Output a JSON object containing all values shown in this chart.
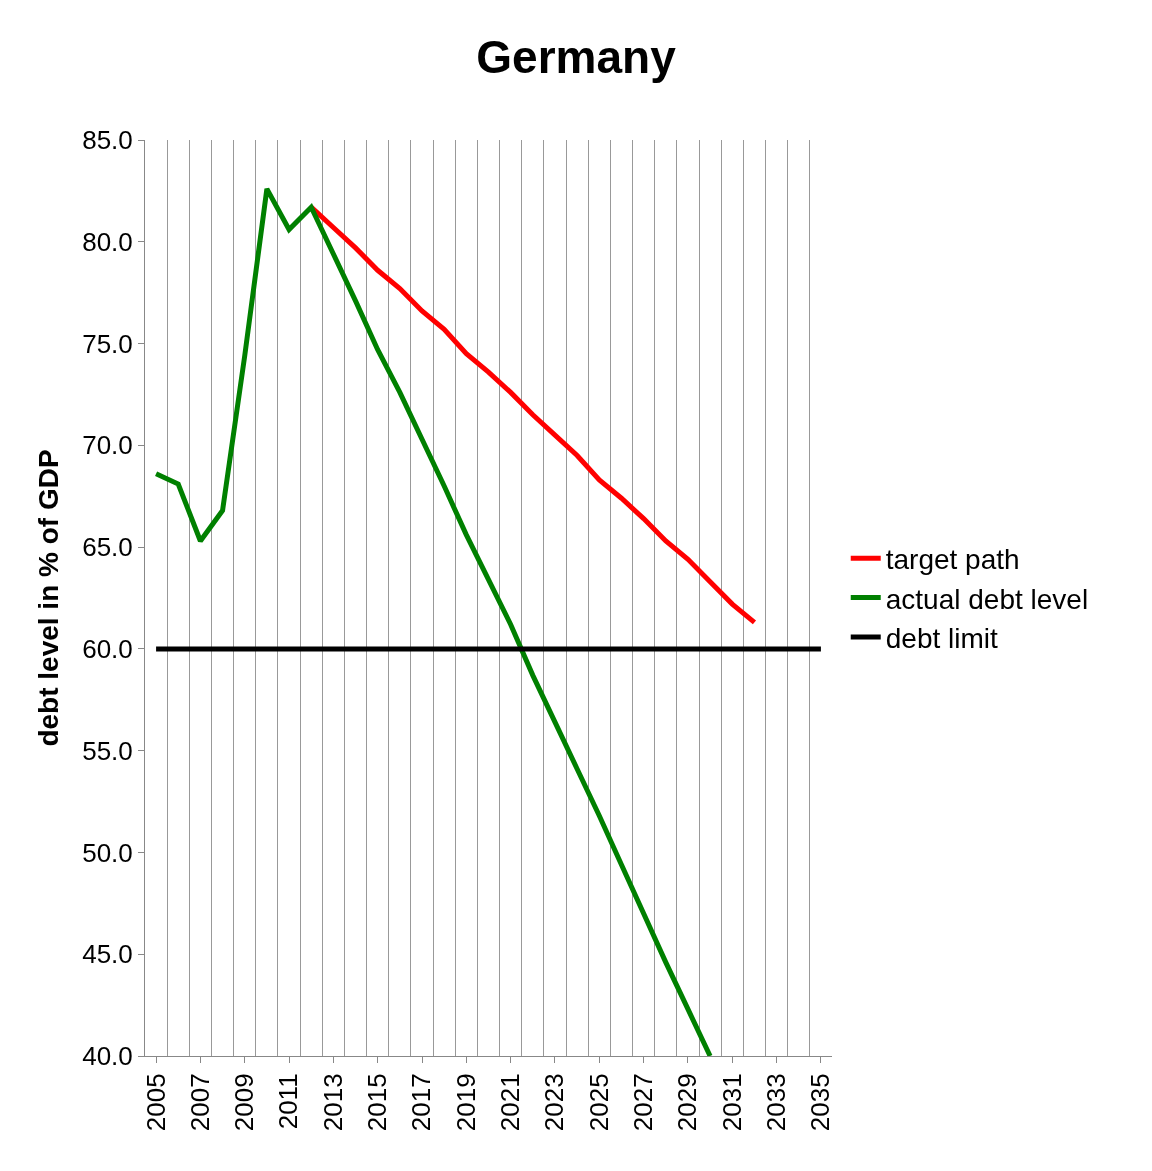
{
  "chart_data": {
    "type": "line",
    "title": "Germany",
    "ylabel": "debt level in % of GDP",
    "series": [
      {
        "name": "target path",
        "color": "#ff0000",
        "x": [
          2012,
          2013,
          2014,
          2015,
          2016,
          2017,
          2018,
          2019,
          2020,
          2021,
          2022,
          2023,
          2024,
          2025,
          2026,
          2027,
          2028,
          2029,
          2030,
          2031,
          2032
        ],
        "values": [
          81.7,
          80.7,
          79.7,
          78.6,
          77.7,
          76.6,
          75.7,
          74.5,
          73.6,
          72.6,
          71.5,
          70.5,
          69.5,
          68.3,
          67.4,
          66.4,
          65.3,
          64.4,
          63.3,
          62.2,
          61.3
        ]
      },
      {
        "name": "actual debt level",
        "color": "#008000",
        "x": [
          2005,
          2006,
          2007,
          2008,
          2009,
          2010,
          2011,
          2012,
          2013,
          2014,
          2015,
          2016,
          2017,
          2018,
          2019,
          2020,
          2021,
          2022,
          2023,
          2024,
          2025,
          2026,
          2027,
          2028,
          2029,
          2030
        ],
        "values": [
          68.6,
          68.1,
          65.3,
          66.8,
          74.4,
          82.6,
          80.6,
          81.7,
          79.4,
          77.1,
          74.7,
          72.6,
          70.3,
          68.0,
          65.6,
          63.4,
          61.2,
          58.7,
          56.4,
          54.1,
          51.8,
          49.4,
          47.0,
          44.6,
          42.3,
          40.0
        ]
      },
      {
        "name": "debt limit",
        "color": "#000000",
        "x": [
          2005,
          2035
        ],
        "values": [
          60.0,
          60.0
        ]
      }
    ],
    "xlim": [
      2004.5,
      2035.5
    ],
    "xticks": [
      2005,
      2007,
      2009,
      2011,
      2013,
      2015,
      2017,
      2019,
      2021,
      2023,
      2025,
      2027,
      2029,
      2031,
      2033,
      2035
    ],
    "ylim": [
      40,
      85
    ],
    "yticks": [
      {
        "value": 40,
        "label": "40.0"
      },
      {
        "value": 45,
        "label": "45.0"
      },
      {
        "value": 50,
        "label": "50.0"
      },
      {
        "value": 55,
        "label": "55.0"
      },
      {
        "value": 60,
        "label": "60.0"
      },
      {
        "value": 65,
        "label": "65.0"
      },
      {
        "value": 70,
        "label": "70.0"
      },
      {
        "value": 75,
        "label": "75.0"
      },
      {
        "value": 80,
        "label": "80.0"
      },
      {
        "value": 85,
        "label": "85.0"
      }
    ],
    "grid": "x",
    "legend": "right",
    "marker": "none",
    "line_style": "solid"
  }
}
